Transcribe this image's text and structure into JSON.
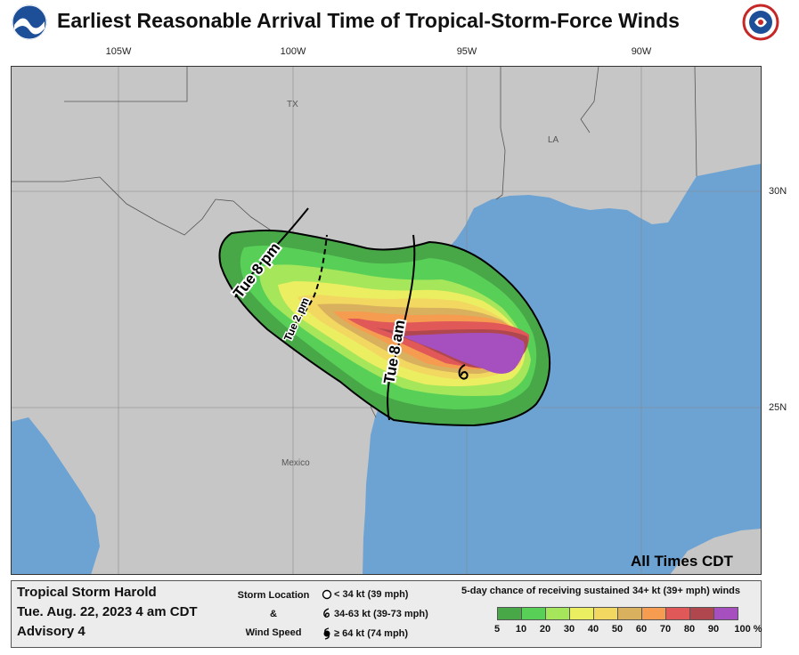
{
  "title": "Earliest Reasonable Arrival Time of Tropical-Storm-Force Winds",
  "logos": {
    "left": "noaa-logo",
    "right": "nws-logo"
  },
  "longitude_labels": [
    "105W",
    "100W",
    "95W",
    "90W"
  ],
  "latitude_labels": [
    "30N",
    "25N"
  ],
  "place_labels": {
    "tx": "TX",
    "la": "LA",
    "mexico": "Mexico"
  },
  "arrival_contours": [
    {
      "label": "Tue 8 pm"
    },
    {
      "label": "Tue 2 pm"
    },
    {
      "label": "Tue 8 am"
    }
  ],
  "all_times_note": "All Times CDT",
  "storm": {
    "name": "Tropical Storm Harold",
    "datetime": "Tue. Aug. 22, 2023  4 am CDT",
    "advisory": "Advisory 4"
  },
  "storm_location_legend": {
    "header_line1": "Storm Location",
    "header_line2": "&",
    "header_line3": "Wind Speed",
    "entries": [
      {
        "icon": "circle-icon",
        "label": "< 34 kt (39 mph)"
      },
      {
        "icon": "tropical-storm-icon",
        "label": "34-63 kt (39-73 mph)"
      },
      {
        "icon": "hurricane-icon",
        "label": "≥ 64 kt (74 mph)"
      }
    ]
  },
  "probability_legend": {
    "title": "5-day chance of receiving sustained 34+ kt (39+ mph) winds",
    "colors": [
      "#48a848",
      "#58d058",
      "#a6e65a",
      "#ecee62",
      "#f2d760",
      "#d9b05e",
      "#f59c50",
      "#e05858",
      "#b0474e",
      "#a64fbf"
    ],
    "labels": [
      "5",
      "10",
      "20",
      "30",
      "40",
      "50",
      "60",
      "70",
      "80",
      "90",
      "100 %"
    ]
  },
  "colors": {
    "land": "#c6c6c6",
    "water": "#6da3d3",
    "border": "#000000"
  }
}
